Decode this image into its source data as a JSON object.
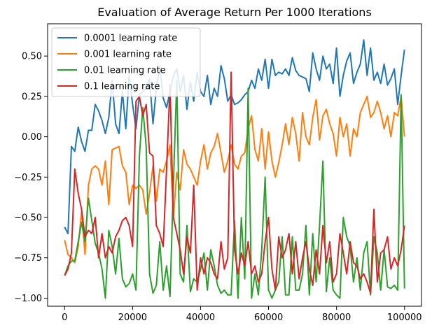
{
  "chart_data": {
    "type": "line",
    "title": "Evaluation of Average Return Per 1000 Iterations",
    "xlabel": "",
    "ylabel": "",
    "xlim": [
      -5000,
      105000
    ],
    "ylim": [
      -1.05,
      0.7
    ],
    "xticks": [
      0,
      20000,
      40000,
      60000,
      80000,
      100000
    ],
    "xtick_labels": [
      "0",
      "20000",
      "40000",
      "60000",
      "80000",
      "100000"
    ],
    "yticks": [
      -1.0,
      -0.75,
      -0.5,
      -0.25,
      0.0,
      0.25,
      0.5
    ],
    "ytick_labels": [
      "−1.00",
      "−0.75",
      "−0.50",
      "−0.25",
      "0.00",
      "0.25",
      "0.50"
    ],
    "grid": false,
    "legend_position": "upper-left",
    "x": [
      0,
      1000,
      2000,
      3000,
      4000,
      5000,
      6000,
      7000,
      8000,
      9000,
      10000,
      11000,
      12000,
      13000,
      14000,
      15000,
      16000,
      17000,
      18000,
      19000,
      20000,
      21000,
      22000,
      23000,
      24000,
      25000,
      26000,
      27000,
      28000,
      29000,
      30000,
      31000,
      32000,
      33000,
      34000,
      35000,
      36000,
      37000,
      38000,
      39000,
      40000,
      41000,
      42000,
      43000,
      44000,
      45000,
      46000,
      47000,
      48000,
      49000,
      50000,
      51000,
      52000,
      53000,
      54000,
      55000,
      56000,
      57000,
      58000,
      59000,
      60000,
      61000,
      62000,
      63000,
      64000,
      65000,
      66000,
      67000,
      68000,
      69000,
      70000,
      71000,
      72000,
      73000,
      74000,
      75000,
      76000,
      77000,
      78000,
      79000,
      80000,
      81000,
      82000,
      83000,
      84000,
      85000,
      86000,
      87000,
      88000,
      89000,
      90000,
      91000,
      92000,
      93000,
      94000,
      95000,
      96000,
      97000,
      98000,
      99000,
      100000
    ],
    "series": [
      {
        "name": "0.0001 learning rate",
        "color": "#1f77b4",
        "values": [
          -0.56,
          -0.6,
          -0.06,
          -0.09,
          0.06,
          -0.03,
          -0.09,
          0.04,
          0.04,
          0.2,
          0.16,
          0.1,
          0.02,
          0.12,
          0.35,
          0.08,
          0.02,
          0.28,
          0.05,
          0.38,
          0.2,
          0.05,
          0.26,
          0.28,
          0.3,
          0.36,
          0.08,
          0.3,
          0.44,
          0.24,
          0.18,
          0.28,
          0.38,
          0.42,
          0.28,
          0.38,
          0.17,
          0.34,
          0.22,
          0.4,
          0.28,
          0.25,
          0.38,
          0.2,
          0.3,
          0.25,
          0.44,
          0.36,
          0.22,
          0.26,
          0.2,
          0.21,
          0.23,
          0.26,
          0.28,
          0.35,
          0.3,
          0.42,
          0.35,
          0.48,
          0.3,
          0.48,
          0.38,
          0.4,
          0.39,
          0.42,
          0.38,
          0.49,
          0.41,
          0.38,
          0.37,
          0.36,
          0.28,
          0.52,
          0.42,
          0.35,
          0.5,
          0.42,
          0.45,
          0.33,
          0.55,
          0.25,
          0.38,
          0.47,
          0.52,
          0.33,
          0.4,
          0.45,
          0.6,
          0.38,
          0.55,
          0.35,
          0.4,
          0.33,
          0.45,
          0.32,
          0.36,
          0.42,
          0.2,
          0.38,
          0.54
        ]
      },
      {
        "name": "0.001 learning rate",
        "color": "#ff7f0e",
        "values": [
          -0.64,
          -0.73,
          -0.75,
          -0.78,
          -0.68,
          -0.46,
          -0.73,
          -0.3,
          -0.2,
          -0.18,
          -0.2,
          -0.3,
          -0.15,
          -0.42,
          -0.08,
          -0.07,
          -0.06,
          -0.18,
          -0.22,
          -0.42,
          -0.3,
          -0.32,
          -0.3,
          -0.33,
          -0.48,
          -0.35,
          -0.18,
          -0.4,
          -0.2,
          -0.22,
          -0.15,
          -0.05,
          -0.5,
          -0.22,
          -0.33,
          -0.08,
          -0.17,
          -0.2,
          -0.25,
          -0.3,
          -0.15,
          -0.05,
          -0.2,
          -0.1,
          -0.06,
          0.02,
          -0.1,
          -0.22,
          -0.15,
          -0.05,
          -0.17,
          -0.2,
          -0.12,
          -0.1,
          0.05,
          0.13,
          -0.08,
          -0.15,
          0.05,
          -0.2,
          0.03,
          -0.15,
          -0.25,
          -0.16,
          -0.05,
          0.08,
          -0.05,
          0.12,
          0.02,
          -0.15,
          0.15,
          0.0,
          -0.05,
          0.12,
          0.23,
          -0.02,
          0.13,
          0.17,
          0.08,
          0.02,
          -0.12,
          0.12,
          0.0,
          0.08,
          -0.12,
          0.05,
          0.0,
          0.15,
          0.2,
          0.25,
          0.12,
          0.15,
          0.22,
          0.15,
          0.05,
          0.13,
          0.0,
          0.15,
          0.13,
          0.25,
          0.0
        ]
      },
      {
        "name": "0.01 learning rate",
        "color": "#2ca02c",
        "values": [
          -0.86,
          -0.8,
          -0.77,
          -0.77,
          -0.65,
          -0.53,
          -0.65,
          -0.38,
          -0.52,
          -0.66,
          -0.72,
          -0.82,
          -1.0,
          -0.58,
          -0.68,
          -0.85,
          -0.63,
          -0.88,
          -0.93,
          -0.91,
          -0.85,
          -0.95,
          -0.12,
          0.18,
          -0.06,
          -0.85,
          -0.97,
          -0.92,
          -0.65,
          -0.95,
          -0.8,
          -0.99,
          -0.3,
          0.35,
          -0.85,
          -0.9,
          -0.55,
          -0.96,
          -0.88,
          -0.9,
          -0.82,
          -0.72,
          -0.95,
          -0.7,
          -0.8,
          -0.92,
          -0.97,
          -0.95,
          -0.98,
          -0.98,
          -0.52,
          -1.0,
          -0.5,
          -0.88,
          0.3,
          -1.0,
          -0.85,
          -0.98,
          -0.7,
          -0.25,
          -0.95,
          -1.0,
          -0.95,
          -0.9,
          -0.62,
          -0.98,
          -0.98,
          -0.62,
          -0.95,
          -0.95,
          -0.85,
          -0.55,
          -0.98,
          -0.6,
          -0.9,
          -0.55,
          -0.15,
          -0.96,
          -0.75,
          -0.95,
          -0.98,
          -1.0,
          -0.5,
          -0.62,
          -0.68,
          -0.9,
          -0.75,
          -0.95,
          -0.72,
          -0.65,
          -0.98,
          -0.62,
          -0.72,
          -0.95,
          -0.7,
          -0.93,
          -0.94,
          -0.92,
          -0.95,
          0.26,
          -0.94
        ]
      },
      {
        "name": "0.1 learning rate",
        "color": "#d62728",
        "values": [
          -0.86,
          -0.82,
          -0.72,
          -0.2,
          -0.35,
          -0.45,
          -0.62,
          -0.58,
          -0.6,
          -0.5,
          -0.75,
          -0.6,
          -0.75,
          -0.68,
          -0.72,
          -0.62,
          -0.58,
          -0.52,
          -0.5,
          -0.55,
          -0.68,
          0.22,
          0.25,
          0.13,
          0.2,
          -0.1,
          -0.12,
          -0.55,
          -0.6,
          -0.68,
          -0.2,
          0.32,
          -0.5,
          -0.6,
          -0.7,
          -0.85,
          -0.62,
          -0.72,
          -0.3,
          -0.95,
          -0.75,
          -0.85,
          -0.75,
          -0.78,
          -0.85,
          -0.88,
          -0.65,
          -0.82,
          -0.75,
          0.4,
          -0.7,
          -0.85,
          -0.72,
          -0.8,
          -0.65,
          -0.85,
          -0.8,
          -0.9,
          -0.85,
          -0.65,
          -0.5,
          -0.82,
          -0.95,
          -0.62,
          -0.75,
          -0.7,
          -0.6,
          -0.85,
          -0.65,
          -0.88,
          -0.75,
          -0.65,
          -0.82,
          -0.92,
          -0.7,
          -0.85,
          -0.55,
          -0.78,
          -0.65,
          -0.9,
          -0.85,
          -0.6,
          -0.72,
          -0.85,
          -0.65,
          -0.78,
          -0.8,
          -0.88,
          -0.85,
          -0.9,
          -0.97,
          -0.45,
          -0.9,
          -0.72,
          -0.7,
          -0.62,
          -0.82,
          -0.75,
          -0.8,
          -0.7,
          -0.55
        ]
      }
    ]
  }
}
